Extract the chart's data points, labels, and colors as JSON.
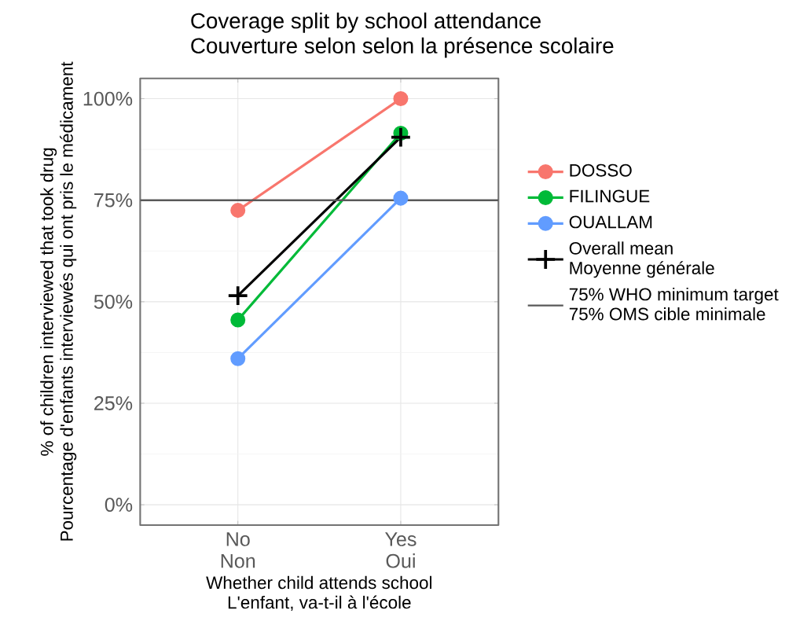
{
  "chart_data": {
    "type": "line",
    "title": "Coverage split by school attendance",
    "subtitle": "Couverture selon selon la présence scolaire",
    "xlabel": "Whether child attends school\nL'enfant, va-t-il à l'école",
    "ylabel": "% of children interviewed that took drug\nPourcentage d'enfants interviewés qui ont pris le médicament",
    "categories": [
      "No\nNon",
      "Yes\nOui"
    ],
    "series": [
      {
        "name": "DOSSO",
        "color": "#f8766d",
        "values": [
          72.5,
          100
        ],
        "marker": "circle"
      },
      {
        "name": "FILINGUE",
        "color": "#00ba38",
        "values": [
          45.5,
          91.5
        ],
        "marker": "circle"
      },
      {
        "name": "OUALLAM",
        "color": "#619cff",
        "values": [
          36,
          75.5
        ],
        "marker": "circle"
      },
      {
        "name": "Overall mean\nMoyenne générale",
        "color": "#000000",
        "values": [
          51.5,
          90.5
        ],
        "marker": "cross"
      }
    ],
    "ylim": [
      -5,
      105
    ],
    "yticks": [
      {
        "value": 0,
        "label": "0%"
      },
      {
        "value": 25,
        "label": "25%"
      },
      {
        "value": 50,
        "label": "50%"
      },
      {
        "value": 75,
        "label": "75%"
      },
      {
        "value": 100,
        "label": "100%"
      }
    ],
    "ref_lines": [
      {
        "axis": "y",
        "value": 75,
        "label": "75% WHO minimum target\n75% OMS cible minimale",
        "color": "#595959"
      }
    ],
    "grid": true,
    "legend": "right",
    "line_style": "solid"
  }
}
